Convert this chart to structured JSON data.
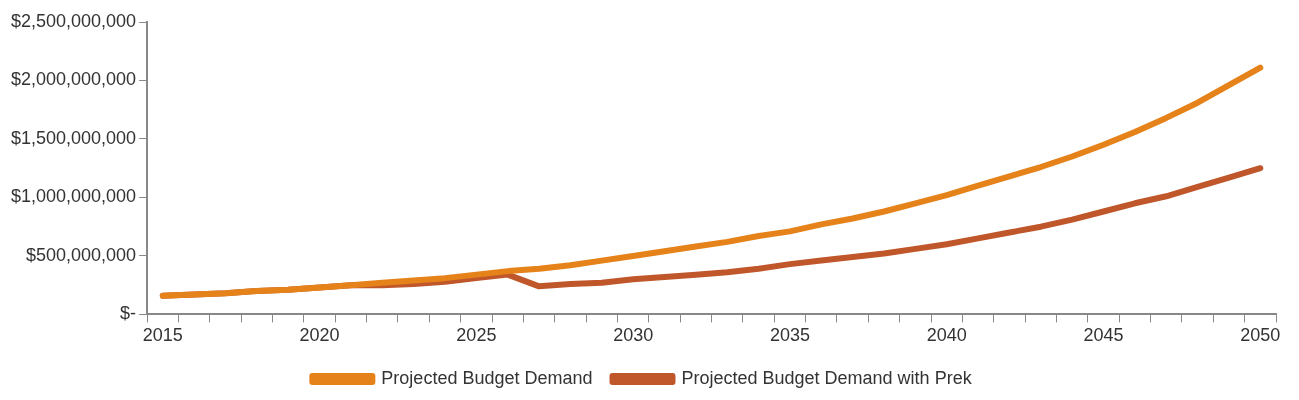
{
  "chart_data": {
    "type": "line",
    "categories": [
      "2015",
      null,
      null,
      null,
      null,
      "2020",
      null,
      null,
      null,
      null,
      "2025",
      null,
      null,
      null,
      null,
      "2030",
      null,
      null,
      null,
      null,
      "2035",
      null,
      null,
      null,
      null,
      "2040",
      null,
      null,
      null,
      null,
      "2045",
      null,
      null,
      null,
      null,
      "2050"
    ],
    "series": [
      {
        "name": "Projected Budget Demand",
        "color": "#e5821a",
        "values": [
          160000000,
          170000000,
          180000000,
          200000000,
          210000000,
          230000000,
          250000000,
          270000000,
          290000000,
          310000000,
          340000000,
          370000000,
          390000000,
          420000000,
          460000000,
          500000000,
          540000000,
          580000000,
          620000000,
          670000000,
          710000000,
          770000000,
          820000000,
          880000000,
          950000000,
          1020000000,
          1100000000,
          1180000000,
          1260000000,
          1350000000,
          1450000000,
          1560000000,
          1680000000,
          1810000000,
          1960000000,
          2110000000
        ]
      },
      {
        "name": "Projected Budget Demand with Prek",
        "color": "#c0572b",
        "values": [
          160000000,
          170000000,
          180000000,
          200000000,
          210000000,
          230000000,
          250000000,
          250000000,
          260000000,
          280000000,
          310000000,
          340000000,
          240000000,
          260000000,
          270000000,
          300000000,
          320000000,
          340000000,
          360000000,
          390000000,
          430000000,
          460000000,
          490000000,
          520000000,
          560000000,
          600000000,
          650000000,
          700000000,
          750000000,
          810000000,
          880000000,
          950000000,
          1010000000,
          1090000000,
          1170000000,
          1250000000
        ]
      }
    ],
    "ylim": [
      0,
      2500000000
    ],
    "yticks": [
      {
        "value": 0,
        "label": "$-"
      },
      {
        "value": 500000000,
        "label": "$500,000,000"
      },
      {
        "value": 1000000000,
        "label": "$1,000,000,000"
      },
      {
        "value": 1500000000,
        "label": "$1,500,000,000"
      },
      {
        "value": 2000000000,
        "label": "$2,000,000,000"
      },
      {
        "value": 2500000000,
        "label": "$2,500,000,000"
      }
    ],
    "grid": false,
    "legend": "bottom",
    "marker": "none",
    "line_style": "solid"
  }
}
